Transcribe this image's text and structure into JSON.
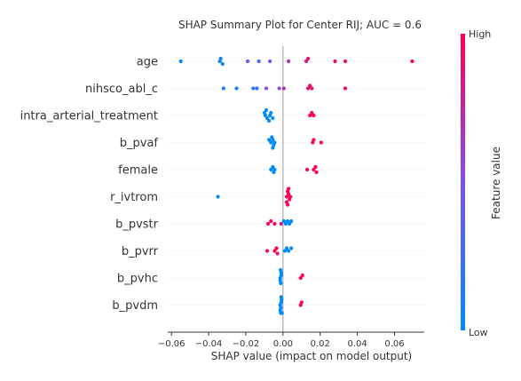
{
  "chart_data": {
    "type": "scatter",
    "title": "SHAP Summary Plot for Center RIJ; AUC = 0.6",
    "xlabel": "SHAP value (impact on model output)",
    "xlim": [
      -0.062,
      0.076
    ],
    "x_ticks": [
      -0.06,
      -0.04,
      -0.02,
      0.0,
      0.02,
      0.04,
      0.06
    ],
    "x_tick_labels": [
      "−0.06",
      "−0.04",
      "−0.02",
      "0.00",
      "0.02",
      "0.04",
      "0.06"
    ],
    "grid": false,
    "colorbar": {
      "label": "Feature value",
      "high_label": "High",
      "low_label": "Low",
      "high_color": "#ff0052",
      "low_color": "#008bfb"
    },
    "features": [
      {
        "name": "age",
        "points": [
          {
            "x": -0.055,
            "v": 0.0
          },
          {
            "x": -0.034,
            "v": 0.05
          },
          {
            "x": -0.0335,
            "v": 0.05
          },
          {
            "x": -0.0325,
            "v": 0.08
          },
          {
            "x": -0.019,
            "v": 0.4
          },
          {
            "x": -0.013,
            "v": 0.3
          },
          {
            "x": -0.007,
            "v": 0.45
          },
          {
            "x": 0.003,
            "v": 0.7
          },
          {
            "x": 0.0125,
            "v": 0.85
          },
          {
            "x": 0.0135,
            "v": 0.9
          },
          {
            "x": 0.028,
            "v": 0.95
          },
          {
            "x": 0.0335,
            "v": 0.92
          },
          {
            "x": 0.0695,
            "v": 1.0
          }
        ]
      },
      {
        "name": "nihsco_abl_c",
        "points": [
          {
            "x": -0.032,
            "v": 0.1
          },
          {
            "x": -0.025,
            "v": 0.12
          },
          {
            "x": -0.016,
            "v": 0.15
          },
          {
            "x": -0.014,
            "v": 0.2
          },
          {
            "x": -0.009,
            "v": 0.5
          },
          {
            "x": -0.002,
            "v": 0.55
          },
          {
            "x": 0.0005,
            "v": 0.7
          },
          {
            "x": 0.0135,
            "v": 0.9
          },
          {
            "x": 0.0145,
            "v": 0.95
          },
          {
            "x": 0.0155,
            "v": 0.92
          },
          {
            "x": 0.0335,
            "v": 1.0
          }
        ]
      },
      {
        "name": "intra_arterial_treatment",
        "points": [
          {
            "x": -0.0095,
            "v": 0.0
          },
          {
            "x": -0.007,
            "v": 0.0
          },
          {
            "x": -0.01,
            "v": 0.0
          },
          {
            "x": -0.0085,
            "v": 0.0
          },
          {
            "x": -0.0065,
            "v": 0.0
          },
          {
            "x": -0.0055,
            "v": 0.0
          },
          {
            "x": -0.009,
            "v": 0.0
          },
          {
            "x": -0.0075,
            "v": 0.0
          },
          {
            "x": 0.0145,
            "v": 1.0
          },
          {
            "x": 0.0165,
            "v": 1.0
          },
          {
            "x": 0.0155,
            "v": 1.0
          }
        ]
      },
      {
        "name": "b_pvaf",
        "points": [
          {
            "x": -0.0065,
            "v": 0.0
          },
          {
            "x": -0.0045,
            "v": 0.0
          },
          {
            "x": -0.0075,
            "v": 0.0
          },
          {
            "x": -0.0055,
            "v": 0.0
          },
          {
            "x": -0.005,
            "v": 0.0
          },
          {
            "x": -0.006,
            "v": 0.0
          },
          {
            "x": -0.0055,
            "v": 0.0
          },
          {
            "x": 0.016,
            "v": 1.0
          },
          {
            "x": 0.0205,
            "v": 1.0
          },
          {
            "x": 0.0165,
            "v": 1.0
          }
        ]
      },
      {
        "name": "female",
        "points": [
          {
            "x": -0.0065,
            "v": 0.0
          },
          {
            "x": -0.0055,
            "v": 0.0
          },
          {
            "x": -0.0045,
            "v": 0.0
          },
          {
            "x": -0.005,
            "v": 0.0
          },
          {
            "x": 0.013,
            "v": 1.0
          },
          {
            "x": 0.0165,
            "v": 1.0
          },
          {
            "x": 0.0175,
            "v": 1.0
          },
          {
            "x": 0.018,
            "v": 1.0
          }
        ]
      },
      {
        "name": "r_ivtrom",
        "points": [
          {
            "x": -0.035,
            "v": 0.0
          },
          {
            "x": 0.002,
            "v": 1.0
          },
          {
            "x": 0.003,
            "v": 1.0
          },
          {
            "x": 0.0035,
            "v": 1.0
          },
          {
            "x": 0.0025,
            "v": 1.0
          },
          {
            "x": 0.004,
            "v": 1.0
          },
          {
            "x": 0.002,
            "v": 1.0
          },
          {
            "x": 0.003,
            "v": 1.0
          },
          {
            "x": 0.0025,
            "v": 1.0
          }
        ]
      },
      {
        "name": "b_pvstr",
        "points": [
          {
            "x": -0.008,
            "v": 1.0
          },
          {
            "x": -0.0065,
            "v": 1.0
          },
          {
            "x": -0.0045,
            "v": 1.0
          },
          {
            "x": -0.001,
            "v": 0.8
          },
          {
            "x": 0.0005,
            "v": 0.0
          },
          {
            "x": 0.0015,
            "v": 0.0
          },
          {
            "x": 0.0025,
            "v": 0.0
          },
          {
            "x": 0.0035,
            "v": 0.0
          },
          {
            "x": 0.0045,
            "v": 0.0
          }
        ]
      },
      {
        "name": "b_pvrr",
        "points": [
          {
            "x": -0.0085,
            "v": 1.0
          },
          {
            "x": -0.0045,
            "v": 1.0
          },
          {
            "x": -0.0035,
            "v": 1.0
          },
          {
            "x": -0.003,
            "v": 0.9
          },
          {
            "x": 0.001,
            "v": 0.0
          },
          {
            "x": 0.002,
            "v": 0.0
          },
          {
            "x": 0.003,
            "v": 0.0
          },
          {
            "x": 0.0045,
            "v": 0.0
          }
        ]
      },
      {
        "name": "b_pvhc",
        "points": [
          {
            "x": -0.0015,
            "v": 0.0
          },
          {
            "x": -0.001,
            "v": 0.0
          },
          {
            "x": -0.0015,
            "v": 0.0
          },
          {
            "x": -0.001,
            "v": 0.0
          },
          {
            "x": -0.0012,
            "v": 0.0
          },
          {
            "x": -0.0013,
            "v": 0.0
          },
          {
            "x": 0.0095,
            "v": 1.0
          },
          {
            "x": 0.0105,
            "v": 1.0
          }
        ]
      },
      {
        "name": "b_pvdm",
        "points": [
          {
            "x": -0.0015,
            "v": 0.0
          },
          {
            "x": -0.001,
            "v": 0.0
          },
          {
            "x": -0.0012,
            "v": 0.0
          },
          {
            "x": -0.0008,
            "v": 0.0
          },
          {
            "x": -0.0015,
            "v": 0.0
          },
          {
            "x": -0.001,
            "v": 0.0
          },
          {
            "x": -0.0012,
            "v": 0.0
          },
          {
            "x": -0.0005,
            "v": 0.0
          },
          {
            "x": 0.0095,
            "v": 1.0
          },
          {
            "x": 0.01,
            "v": 1.0
          }
        ]
      }
    ]
  }
}
